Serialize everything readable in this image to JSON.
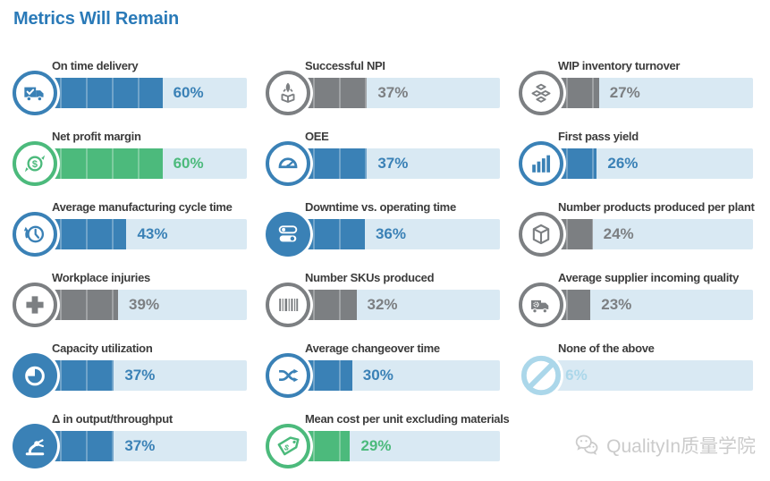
{
  "title": "Metrics Will Remain",
  "colors": {
    "blue": "#3a81b6",
    "green": "#4cba7c",
    "gray": "#7c7f82",
    "lightblue": "#abd7ea",
    "track": "#d9e9f3",
    "title_blue": "#2a7ab8",
    "label_text": "#3c3c3c",
    "watermark_gray": "#cbcbcb"
  },
  "watermark": {
    "text": "QualityIn质量学院",
    "icon": "wechat-icon"
  },
  "chart_data": {
    "type": "bar",
    "orientation": "horizontal",
    "title": "Metrics Will Remain",
    "unit": "%",
    "xlim": [
      0,
      100
    ],
    "layout": "3-column-grid",
    "columns": [
      [
        {
          "label": "On time delivery",
          "value": 60,
          "pct": "60%",
          "color": "blue",
          "icon": "delivery-truck-check-icon",
          "icon_style": "outline"
        },
        {
          "label": "Net profit margin",
          "value": 60,
          "pct": "60%",
          "color": "green",
          "icon": "dollar-cycle-icon",
          "icon_style": "outline"
        },
        {
          "label": "Average manufacturing cycle time",
          "value": 43,
          "pct": "43%",
          "color": "blue",
          "icon": "clock-history-icon",
          "icon_style": "outline"
        },
        {
          "label": "Workplace injuries",
          "value": 39,
          "pct": "39%",
          "color": "gray",
          "icon": "medical-cross-icon",
          "icon_style": "outline"
        },
        {
          "label": "Capacity utilization",
          "value": 37,
          "pct": "37%",
          "color": "blue",
          "icon": "pie-chart-icon",
          "icon_style": "solid"
        },
        {
          "label": "Δ in output/throughput",
          "value": 37,
          "pct": "37%",
          "color": "blue",
          "icon": "robot-arm-icon",
          "icon_style": "solid"
        }
      ],
      [
        {
          "label": "Successful NPI",
          "value": 37,
          "pct": "37%",
          "color": "gray",
          "icon": "rocket-launch-icon",
          "icon_style": "outline"
        },
        {
          "label": "OEE",
          "value": 37,
          "pct": "37%",
          "color": "blue",
          "icon": "gauge-icon",
          "icon_style": "outline"
        },
        {
          "label": "Downtime vs. operating time",
          "value": 36,
          "pct": "36%",
          "color": "blue",
          "icon": "toggle-switches-icon",
          "icon_style": "solid"
        },
        {
          "label": "Number SKUs produced",
          "value": 32,
          "pct": "32%",
          "color": "gray",
          "icon": "barcode-icon",
          "icon_style": "outline"
        },
        {
          "label": "Average changeover time",
          "value": 30,
          "pct": "30%",
          "color": "blue",
          "icon": "shuffle-icon",
          "icon_style": "outline"
        },
        {
          "label": "Mean cost per unit excluding materials",
          "value": 29,
          "pct": "29%",
          "color": "green",
          "icon": "price-tag-icon",
          "icon_style": "outline"
        }
      ],
      [
        {
          "label": "WIP inventory turnover",
          "value": 27,
          "pct": "27%",
          "color": "gray",
          "icon": "stacked-boxes-icon",
          "icon_style": "outline"
        },
        {
          "label": "First pass yield",
          "value": 26,
          "pct": "26%",
          "color": "blue",
          "icon": "bar-chart-icon",
          "icon_style": "outline"
        },
        {
          "label": "Number products produced per plant",
          "value": 24,
          "pct": "24%",
          "color": "gray",
          "icon": "cube-icon",
          "icon_style": "outline"
        },
        {
          "label": "Average supplier incoming quality",
          "value": 23,
          "pct": "23%",
          "color": "gray",
          "icon": "supplier-truck-icon",
          "icon_style": "outline"
        },
        {
          "label": "None of the above",
          "value": 6,
          "pct": "6%",
          "color": "lightblue",
          "icon": "prohibition-icon",
          "icon_style": "plain"
        }
      ]
    ]
  }
}
